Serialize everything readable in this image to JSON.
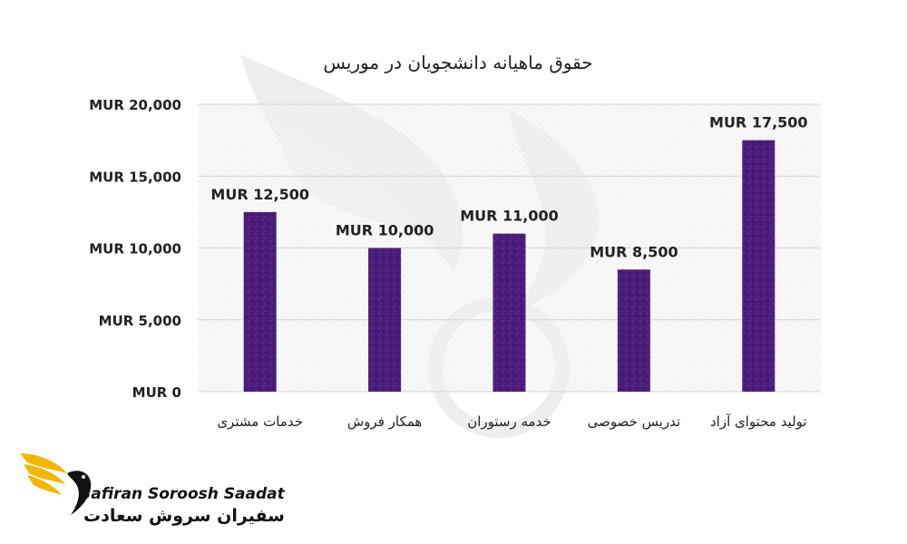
{
  "chart_data": {
    "type": "bar",
    "title": "حقوق ماهیانه دانشجویان در موریس",
    "categories": [
      "خدمات مشتری",
      "همکار فروش",
      "خدمه رستوران",
      "تدریس خصوصی",
      "تولید محتوای آزاد"
    ],
    "values": [
      12500,
      10000,
      11000,
      8500,
      17500
    ],
    "data_labels": [
      "MUR 12,500",
      "MUR 10,000",
      "MUR 11,000",
      "MUR 8,500",
      "MUR 17,500"
    ],
    "yticks": [
      0,
      5000,
      10000,
      15000,
      20000
    ],
    "ytick_labels": [
      "MUR 0",
      "MUR 5,000",
      "MUR 10,000",
      "MUR 15,000",
      "MUR 20,000"
    ],
    "ylim": [
      0,
      20000
    ],
    "xlabel": "",
    "ylabel": "",
    "grid": true,
    "bar_color": "#4a1d7a"
  },
  "logo": {
    "name_en": "Safiran Soroosh Saadat",
    "name_fa": "سفیران سروش سعادت",
    "accent_color": "#f2b705"
  }
}
